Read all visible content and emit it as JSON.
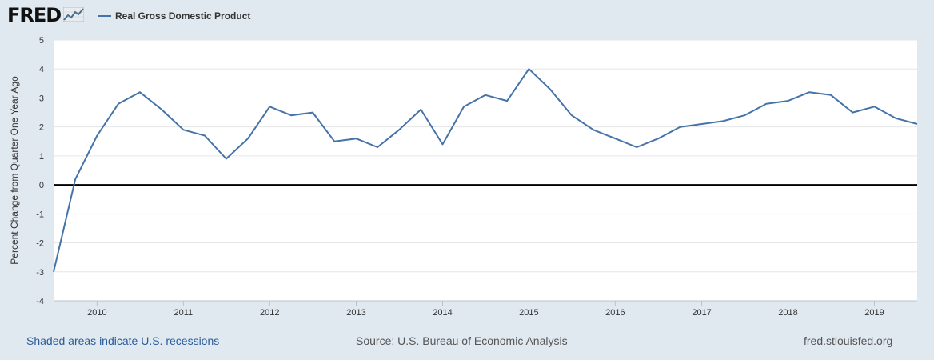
{
  "header": {
    "logo_text": "FRED",
    "legend_label": "Real Gross Domestic Product"
  },
  "footer": {
    "recessions_note": "Shaded areas indicate U.S. recessions",
    "source": "Source: U.S. Bureau of Economic Analysis",
    "site": "fred.stlouisfed.org"
  },
  "colors": {
    "series": "#4572a7",
    "background": "#e1e9f0",
    "plot_background": "#ffffff",
    "zero_line": "#000000",
    "footer_link": "#2a5c9a"
  },
  "chart_data": {
    "type": "line",
    "title": "",
    "xlabel": "",
    "ylabel": "Percent Change from Quarter One Year Ago",
    "ylim": [
      -4,
      5
    ],
    "yticks": [
      "5",
      "4",
      "3",
      "2",
      "1",
      "0",
      "-1",
      "-2",
      "-3",
      "-4"
    ],
    "xticks": [
      "2010",
      "2011",
      "2012",
      "2013",
      "2014",
      "2015",
      "2016",
      "2017",
      "2018",
      "2019"
    ],
    "xlim": [
      "2009-07-01",
      "2019-07-01"
    ],
    "grid": true,
    "legend": "top-left",
    "series": [
      {
        "name": "Real Gross Domestic Product",
        "x": [
          "2009-07-01",
          "2009-10-01",
          "2010-01-01",
          "2010-04-01",
          "2010-07-01",
          "2010-10-01",
          "2011-01-01",
          "2011-04-01",
          "2011-07-01",
          "2011-10-01",
          "2012-01-01",
          "2012-04-01",
          "2012-07-01",
          "2012-10-01",
          "2013-01-01",
          "2013-04-01",
          "2013-07-01",
          "2013-10-01",
          "2014-01-01",
          "2014-04-01",
          "2014-07-01",
          "2014-10-01",
          "2015-01-01",
          "2015-04-01",
          "2015-07-01",
          "2015-10-01",
          "2016-01-01",
          "2016-04-01",
          "2016-07-01",
          "2016-10-01",
          "2017-01-01",
          "2017-04-01",
          "2017-07-01",
          "2017-10-01",
          "2018-01-01",
          "2018-04-01",
          "2018-07-01",
          "2018-10-01",
          "2019-01-01",
          "2019-04-01",
          "2019-07-01"
        ],
        "values": [
          -3.0,
          0.2,
          1.7,
          2.8,
          3.2,
          2.6,
          1.9,
          1.7,
          0.9,
          1.6,
          2.7,
          2.4,
          2.5,
          1.5,
          1.6,
          1.3,
          1.9,
          2.6,
          1.4,
          2.7,
          3.1,
          2.9,
          4.0,
          3.3,
          2.4,
          1.9,
          1.6,
          1.3,
          1.6,
          2.0,
          2.1,
          2.2,
          2.4,
          2.8,
          2.9,
          3.2,
          3.1,
          2.5,
          2.7,
          2.3,
          2.1
        ]
      }
    ]
  }
}
